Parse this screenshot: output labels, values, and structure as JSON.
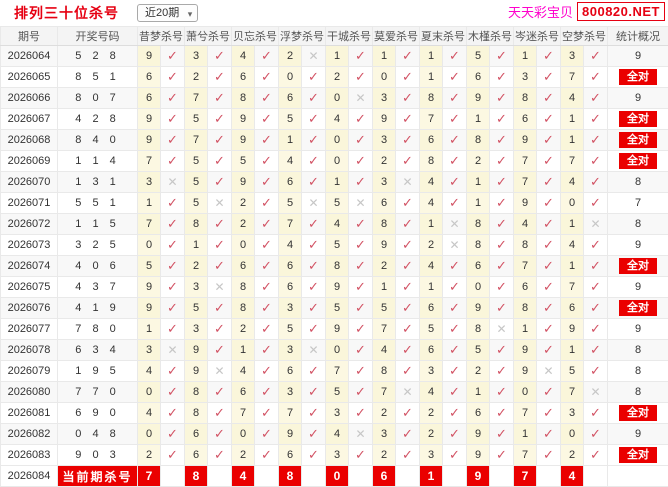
{
  "page": {
    "title": "排列三十位杀号",
    "range_selector": "近20期",
    "brand": "天天彩宝贝",
    "site": "800820.NET"
  },
  "table": {
    "headers": [
      "期号",
      "开奖号码",
      "昔梦杀号",
      "萧兮杀号",
      "贝忘杀号",
      "浮梦杀号",
      "干城杀号",
      "莫爱杀号",
      "夏末杀号",
      "木槿杀号",
      "岑迷杀号",
      "空梦杀号",
      "统计概况"
    ],
    "all_correct_label": "全对",
    "current_label": "当前期杀号",
    "mark_correct": "✓",
    "mark_wrong": "✕",
    "rows": [
      {
        "period": "2026064",
        "draw": "5 2 8",
        "kills": [
          9,
          3,
          4,
          2,
          1,
          1,
          1,
          5,
          1,
          3
        ],
        "marks": [
          1,
          1,
          1,
          0,
          1,
          1,
          1,
          1,
          1,
          1
        ],
        "stat": "9"
      },
      {
        "period": "2026065",
        "draw": "8 5 1",
        "kills": [
          6,
          2,
          6,
          0,
          2,
          0,
          1,
          6,
          3,
          7
        ],
        "marks": [
          1,
          1,
          1,
          1,
          1,
          1,
          1,
          1,
          1,
          1
        ],
        "stat": "全对"
      },
      {
        "period": "2026066",
        "draw": "8 0 7",
        "kills": [
          6,
          7,
          8,
          6,
          0,
          3,
          8,
          9,
          8,
          4
        ],
        "marks": [
          1,
          1,
          1,
          1,
          0,
          1,
          1,
          1,
          1,
          1
        ],
        "stat": "9"
      },
      {
        "period": "2026067",
        "draw": "4 2 8",
        "kills": [
          9,
          5,
          9,
          5,
          4,
          9,
          7,
          1,
          6,
          1
        ],
        "marks": [
          1,
          1,
          1,
          1,
          1,
          1,
          1,
          1,
          1,
          1
        ],
        "stat": "全对"
      },
      {
        "period": "2026068",
        "draw": "8 4 0",
        "kills": [
          9,
          7,
          9,
          1,
          0,
          3,
          6,
          8,
          9,
          1
        ],
        "marks": [
          1,
          1,
          1,
          1,
          1,
          1,
          1,
          1,
          1,
          1
        ],
        "stat": "全对"
      },
      {
        "period": "2026069",
        "draw": "1 1 4",
        "kills": [
          7,
          5,
          5,
          4,
          0,
          2,
          8,
          2,
          7,
          7
        ],
        "marks": [
          1,
          1,
          1,
          1,
          1,
          1,
          1,
          1,
          1,
          1
        ],
        "stat": "全对"
      },
      {
        "period": "2026070",
        "draw": "1 3 1",
        "kills": [
          3,
          5,
          9,
          6,
          1,
          3,
          4,
          1,
          7,
          4
        ],
        "marks": [
          0,
          1,
          1,
          1,
          1,
          0,
          1,
          1,
          1,
          1
        ],
        "stat": "8"
      },
      {
        "period": "2026071",
        "draw": "5 5 1",
        "kills": [
          1,
          5,
          2,
          5,
          5,
          6,
          4,
          1,
          9,
          0
        ],
        "marks": [
          1,
          0,
          1,
          0,
          0,
          1,
          1,
          1,
          1,
          1
        ],
        "stat": "7"
      },
      {
        "period": "2026072",
        "draw": "1 1 5",
        "kills": [
          7,
          8,
          2,
          7,
          4,
          8,
          1,
          8,
          4,
          1
        ],
        "marks": [
          1,
          1,
          1,
          1,
          1,
          1,
          0,
          1,
          1,
          0
        ],
        "stat": "8"
      },
      {
        "period": "2026073",
        "draw": "3 2 5",
        "kills": [
          0,
          1,
          0,
          4,
          5,
          9,
          2,
          8,
          8,
          4
        ],
        "marks": [
          1,
          1,
          1,
          1,
          1,
          1,
          0,
          1,
          1,
          1
        ],
        "stat": "9"
      },
      {
        "period": "2026074",
        "draw": "4 0 6",
        "kills": [
          5,
          2,
          6,
          6,
          8,
          2,
          4,
          6,
          7,
          1
        ],
        "marks": [
          1,
          1,
          1,
          1,
          1,
          1,
          1,
          1,
          1,
          1
        ],
        "stat": "全对"
      },
      {
        "period": "2026075",
        "draw": "4 3 7",
        "kills": [
          9,
          3,
          8,
          6,
          9,
          1,
          1,
          0,
          6,
          7
        ],
        "marks": [
          1,
          0,
          1,
          1,
          1,
          1,
          1,
          1,
          1,
          1
        ],
        "stat": "9"
      },
      {
        "period": "2026076",
        "draw": "4 1 9",
        "kills": [
          9,
          5,
          8,
          3,
          5,
          5,
          6,
          9,
          8,
          6
        ],
        "marks": [
          1,
          1,
          1,
          1,
          1,
          1,
          1,
          1,
          1,
          1
        ],
        "stat": "全对"
      },
      {
        "period": "2026077",
        "draw": "7 8 0",
        "kills": [
          1,
          3,
          2,
          5,
          9,
          7,
          5,
          8,
          1,
          9
        ],
        "marks": [
          1,
          1,
          1,
          1,
          1,
          1,
          1,
          0,
          1,
          1
        ],
        "stat": "9"
      },
      {
        "period": "2026078",
        "draw": "6 3 4",
        "kills": [
          3,
          9,
          1,
          3,
          0,
          4,
          6,
          5,
          9,
          1
        ],
        "marks": [
          0,
          1,
          1,
          0,
          1,
          1,
          1,
          1,
          1,
          1
        ],
        "stat": "8"
      },
      {
        "period": "2026079",
        "draw": "1 9 5",
        "kills": [
          4,
          9,
          4,
          6,
          7,
          8,
          3,
          2,
          9,
          5
        ],
        "marks": [
          1,
          0,
          1,
          1,
          1,
          1,
          1,
          1,
          0,
          1
        ],
        "stat": "8"
      },
      {
        "period": "2026080",
        "draw": "7 7 0",
        "kills": [
          0,
          8,
          6,
          3,
          5,
          7,
          4,
          1,
          0,
          7
        ],
        "marks": [
          1,
          1,
          1,
          1,
          1,
          0,
          1,
          1,
          1,
          0
        ],
        "stat": "8"
      },
      {
        "period": "2026081",
        "draw": "6 9 0",
        "kills": [
          4,
          8,
          7,
          7,
          3,
          2,
          2,
          6,
          7,
          3
        ],
        "marks": [
          1,
          1,
          1,
          1,
          1,
          1,
          1,
          1,
          1,
          1
        ],
        "stat": "全对"
      },
      {
        "period": "2026082",
        "draw": "0 4 8",
        "kills": [
          0,
          6,
          0,
          9,
          4,
          3,
          2,
          9,
          1,
          0
        ],
        "marks": [
          1,
          1,
          1,
          1,
          0,
          1,
          1,
          1,
          1,
          1
        ],
        "stat": "9"
      },
      {
        "period": "2026083",
        "draw": "9 0 3",
        "kills": [
          2,
          6,
          2,
          6,
          3,
          2,
          3,
          9,
          7,
          2
        ],
        "marks": [
          1,
          1,
          1,
          1,
          1,
          1,
          1,
          1,
          1,
          1
        ],
        "stat": "全对"
      },
      {
        "period": "2026084",
        "draw": "",
        "current": true,
        "kills": [
          7,
          8,
          4,
          8,
          0,
          6,
          1,
          9,
          7,
          4
        ],
        "marks": [],
        "stat": ""
      }
    ]
  },
  "colors": {
    "accent_red": "#e60012",
    "badge_red": "#ea0000",
    "check": "#d25264",
    "cross": "#c6c6c6",
    "brand_pink": "#ff00cc",
    "kill_cell_bg": "#fcf8e2"
  }
}
